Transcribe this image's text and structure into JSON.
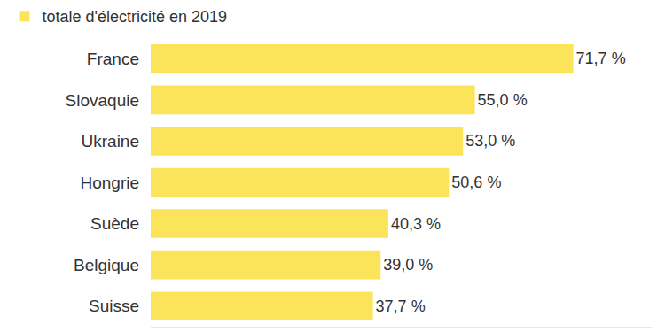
{
  "chart_data": {
    "type": "bar",
    "orientation": "horizontal",
    "categories": [
      "France",
      "Slovaquie",
      "Ukraine",
      "Hongrie",
      "Suède",
      "Belgique",
      "Suisse"
    ],
    "series": [
      {
        "name": "totale d'électricité en 2019",
        "color": "#fbe35a",
        "values": [
          71.7,
          55.0,
          53.0,
          50.6,
          40.3,
          39.0,
          37.7
        ],
        "value_labels": [
          "71,7 %",
          "55,0 %",
          "53,0 %",
          "50,6 %",
          "40,3 %",
          "39,0 %",
          "37,7 %"
        ]
      }
    ],
    "xlim": [
      0,
      85
    ],
    "data_labels": true,
    "tick_labels": "y",
    "grid": false,
    "legend": "top-left"
  }
}
